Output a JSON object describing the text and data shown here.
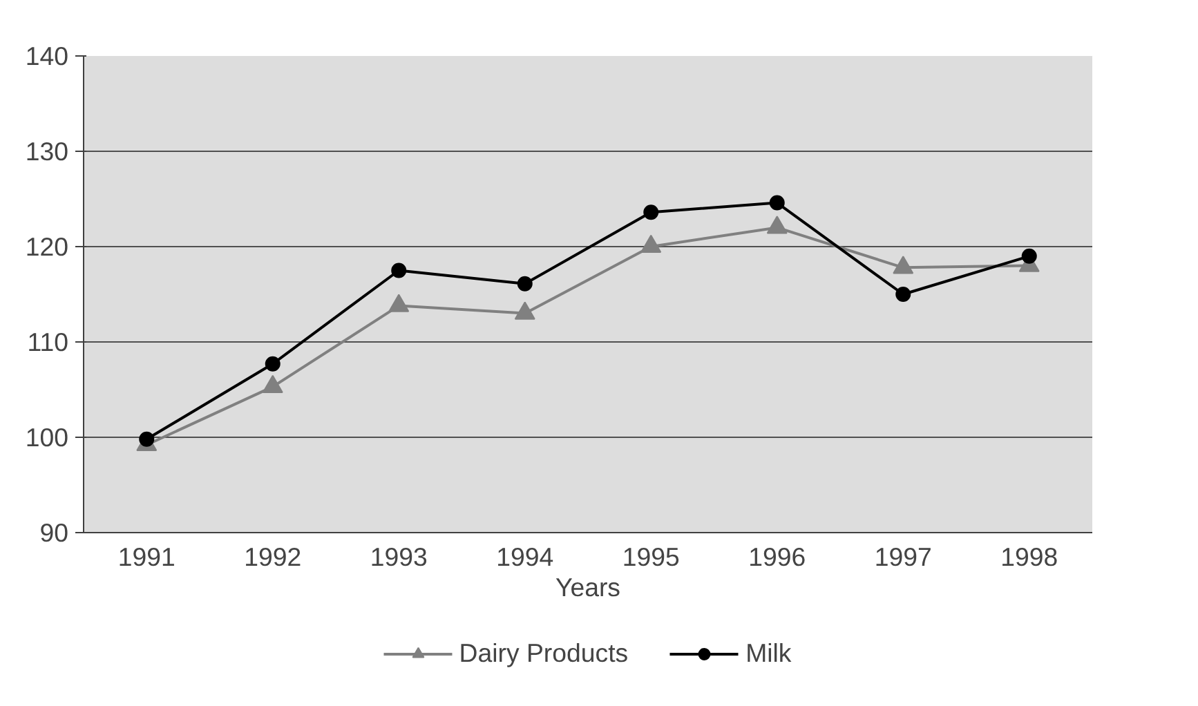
{
  "chart_data": {
    "type": "line",
    "xlabel": "Years",
    "categories": [
      "1991",
      "1992",
      "1993",
      "1994",
      "1995",
      "1996",
      "1997",
      "1998"
    ],
    "series": [
      {
        "name": "Dairy Products",
        "color": "#808080",
        "marker": "triangle",
        "values": [
          99.2,
          105.3,
          113.8,
          113.0,
          120.0,
          122.0,
          117.8,
          118.0
        ]
      },
      {
        "name": "Milk",
        "color": "#000000",
        "marker": "circle",
        "values": [
          99.8,
          107.7,
          117.5,
          116.1,
          123.6,
          124.6,
          115.0,
          119.0
        ]
      }
    ],
    "ylim": [
      90,
      140
    ],
    "yticks": [
      90,
      100,
      110,
      120,
      130,
      140
    ],
    "grid": "y",
    "legend": "bottom"
  }
}
